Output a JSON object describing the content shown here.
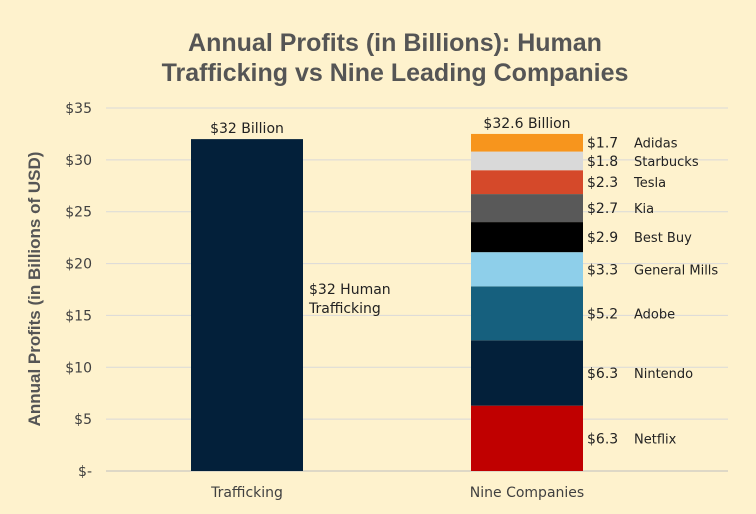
{
  "chart_data": {
    "type": "bar",
    "stacked": true,
    "title": [
      "Annual Profits (in Billions): Human",
      "Trafficking vs Nine Leading Companies"
    ],
    "ylabel": "Annual Profits (in Billions of USD)",
    "xlabel": "",
    "ylim": [
      0,
      35
    ],
    "yticks": [
      0,
      5,
      10,
      15,
      20,
      25,
      30,
      35
    ],
    "ytick_labels": [
      "$-",
      "$5",
      "$10",
      "$15",
      "$20",
      "$25",
      "$30",
      "$35"
    ],
    "grid": true,
    "legend": "none",
    "categories": [
      "Trafficking",
      "Nine Companies"
    ],
    "bars": [
      {
        "category": "Trafficking",
        "total_label": "$32 Billion",
        "segments": [
          {
            "name": "Human Trafficking",
            "value": 32,
            "value_label": "$32 Human",
            "name_label": "Trafficking",
            "color": "#03203a"
          }
        ]
      },
      {
        "category": "Nine Companies",
        "total_label": "$32.6 Billion",
        "segments": [
          {
            "name": "Netflix",
            "value": 6.3,
            "value_label": "$6.3",
            "color": "#c00000"
          },
          {
            "name": "Nintendo",
            "value": 6.3,
            "value_label": "$6.3",
            "color": "#03203a"
          },
          {
            "name": "Adobe",
            "value": 5.2,
            "value_label": "$5.2",
            "color": "#16607e"
          },
          {
            "name": "General Mills",
            "value": 3.3,
            "value_label": "$3.3",
            "color": "#8ecfea"
          },
          {
            "name": "Best Buy",
            "value": 2.9,
            "value_label": "$2.9",
            "color": "#000000"
          },
          {
            "name": "Kia",
            "value": 2.7,
            "value_label": "$2.7",
            "color": "#595959"
          },
          {
            "name": "Tesla",
            "value": 2.3,
            "value_label": "$2.3",
            "color": "#d5492a"
          },
          {
            "name": "Starbucks",
            "value": 1.8,
            "value_label": "$1.8",
            "color": "#d9d9d9"
          },
          {
            "name": "Adidas",
            "value": 1.7,
            "value_label": "$1.7",
            "color": "#f7951d"
          }
        ]
      }
    ]
  }
}
